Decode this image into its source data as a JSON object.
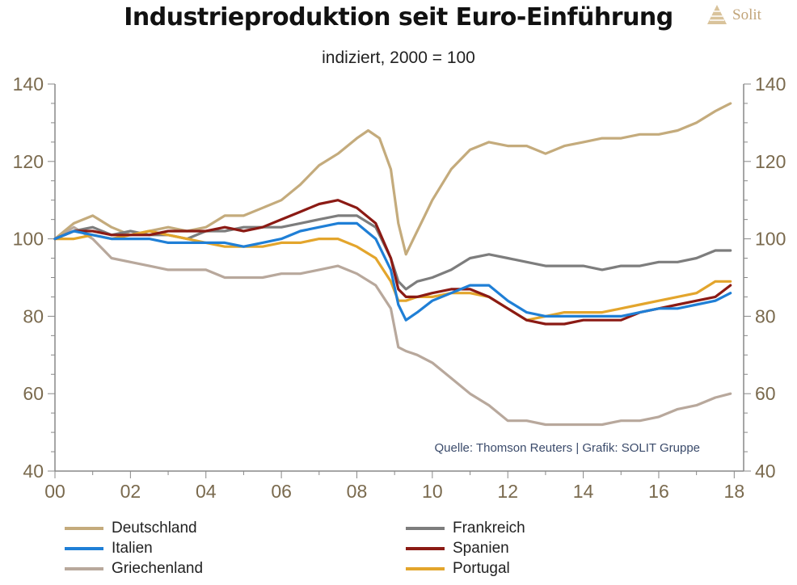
{
  "header": {
    "title": "Industrieproduktion seit Euro-Einführung",
    "subtitle": "indiziert, 2000 = 100",
    "logo_text": "Solit"
  },
  "source_note": "Quelle: Thomson Reuters | Grafik: SOLIT Gruppe",
  "chart_data": {
    "type": "line",
    "title": "Industrieproduktion seit Euro-Einführung",
    "subtitle": "indiziert, 2000 = 100",
    "x_tick_labels": [
      "00",
      "02",
      "04",
      "06",
      "08",
      "10",
      "12",
      "14",
      "16",
      "18"
    ],
    "y_tick_labels": [
      "40",
      "60",
      "80",
      "100",
      "120",
      "140"
    ],
    "xlim": [
      2000,
      2018.25
    ],
    "ylim": [
      40,
      140
    ],
    "y_axes": "left and right (mirrored)",
    "grid": false,
    "legend_position": "bottom",
    "series": [
      {
        "name": "Deutschland",
        "color": "#c4ab7c",
        "points": [
          [
            2000,
            100
          ],
          [
            2000.5,
            104
          ],
          [
            2001,
            106
          ],
          [
            2001.5,
            103
          ],
          [
            2002,
            101
          ],
          [
            2002.5,
            102
          ],
          [
            2003,
            103
          ],
          [
            2003.5,
            102
          ],
          [
            2004,
            103
          ],
          [
            2004.5,
            106
          ],
          [
            2005,
            106
          ],
          [
            2005.5,
            108
          ],
          [
            2006,
            110
          ],
          [
            2006.5,
            114
          ],
          [
            2007,
            119
          ],
          [
            2007.5,
            122
          ],
          [
            2008,
            126
          ],
          [
            2008.3,
            128
          ],
          [
            2008.6,
            126
          ],
          [
            2008.9,
            118
          ],
          [
            2009.1,
            104
          ],
          [
            2009.3,
            96
          ],
          [
            2009.5,
            100
          ],
          [
            2009.8,
            106
          ],
          [
            2010,
            110
          ],
          [
            2010.5,
            118
          ],
          [
            2011,
            123
          ],
          [
            2011.5,
            125
          ],
          [
            2012,
            124
          ],
          [
            2012.5,
            124
          ],
          [
            2013,
            122
          ],
          [
            2013.5,
            124
          ],
          [
            2014,
            125
          ],
          [
            2014.5,
            126
          ],
          [
            2015,
            126
          ],
          [
            2015.5,
            127
          ],
          [
            2016,
            127
          ],
          [
            2016.5,
            128
          ],
          [
            2017,
            130
          ],
          [
            2017.5,
            133
          ],
          [
            2017.9,
            135
          ]
        ]
      },
      {
        "name": "Frankreich",
        "color": "#7d7d7d",
        "points": [
          [
            2000,
            100
          ],
          [
            2000.5,
            102
          ],
          [
            2001,
            103
          ],
          [
            2001.5,
            101
          ],
          [
            2002,
            102
          ],
          [
            2002.5,
            101
          ],
          [
            2003,
            101
          ],
          [
            2003.5,
            100
          ],
          [
            2004,
            102
          ],
          [
            2004.5,
            102
          ],
          [
            2005,
            103
          ],
          [
            2005.5,
            103
          ],
          [
            2006,
            103
          ],
          [
            2006.5,
            104
          ],
          [
            2007,
            105
          ],
          [
            2007.5,
            106
          ],
          [
            2008,
            106
          ],
          [
            2008.5,
            103
          ],
          [
            2008.9,
            95
          ],
          [
            2009.1,
            89
          ],
          [
            2009.3,
            87
          ],
          [
            2009.6,
            89
          ],
          [
            2010,
            90
          ],
          [
            2010.5,
            92
          ],
          [
            2011,
            95
          ],
          [
            2011.5,
            96
          ],
          [
            2012,
            95
          ],
          [
            2012.5,
            94
          ],
          [
            2013,
            93
          ],
          [
            2013.5,
            93
          ],
          [
            2014,
            93
          ],
          [
            2014.5,
            92
          ],
          [
            2015,
            93
          ],
          [
            2015.5,
            93
          ],
          [
            2016,
            94
          ],
          [
            2016.5,
            94
          ],
          [
            2017,
            95
          ],
          [
            2017.5,
            97
          ],
          [
            2017.9,
            97
          ]
        ]
      },
      {
        "name": "Italien",
        "color": "#1f7fd6",
        "points": [
          [
            2000,
            100
          ],
          [
            2000.5,
            102
          ],
          [
            2001,
            101
          ],
          [
            2001.5,
            100
          ],
          [
            2002,
            100
          ],
          [
            2002.5,
            100
          ],
          [
            2003,
            99
          ],
          [
            2003.5,
            99
          ],
          [
            2004,
            99
          ],
          [
            2004.5,
            99
          ],
          [
            2005,
            98
          ],
          [
            2005.5,
            99
          ],
          [
            2006,
            100
          ],
          [
            2006.5,
            102
          ],
          [
            2007,
            103
          ],
          [
            2007.5,
            104
          ],
          [
            2008,
            104
          ],
          [
            2008.5,
            100
          ],
          [
            2008.9,
            92
          ],
          [
            2009.1,
            83
          ],
          [
            2009.3,
            79
          ],
          [
            2009.6,
            81
          ],
          [
            2010,
            84
          ],
          [
            2010.5,
            86
          ],
          [
            2011,
            88
          ],
          [
            2011.5,
            88
          ],
          [
            2012,
            84
          ],
          [
            2012.5,
            81
          ],
          [
            2013,
            80
          ],
          [
            2013.5,
            80
          ],
          [
            2014,
            80
          ],
          [
            2014.5,
            80
          ],
          [
            2015,
            80
          ],
          [
            2015.5,
            81
          ],
          [
            2016,
            82
          ],
          [
            2016.5,
            82
          ],
          [
            2017,
            83
          ],
          [
            2017.5,
            84
          ],
          [
            2017.9,
            86
          ]
        ]
      },
      {
        "name": "Spanien",
        "color": "#8b1a14",
        "points": [
          [
            2000,
            100
          ],
          [
            2000.5,
            102
          ],
          [
            2001,
            102
          ],
          [
            2001.5,
            101
          ],
          [
            2002,
            101
          ],
          [
            2002.5,
            101
          ],
          [
            2003,
            102
          ],
          [
            2003.5,
            102
          ],
          [
            2004,
            102
          ],
          [
            2004.5,
            103
          ],
          [
            2005,
            102
          ],
          [
            2005.5,
            103
          ],
          [
            2006,
            105
          ],
          [
            2006.5,
            107
          ],
          [
            2007,
            109
          ],
          [
            2007.5,
            110
          ],
          [
            2008,
            108
          ],
          [
            2008.5,
            104
          ],
          [
            2008.9,
            95
          ],
          [
            2009.1,
            87
          ],
          [
            2009.3,
            85
          ],
          [
            2009.6,
            85
          ],
          [
            2010,
            86
          ],
          [
            2010.5,
            87
          ],
          [
            2011,
            87
          ],
          [
            2011.5,
            85
          ],
          [
            2012,
            82
          ],
          [
            2012.5,
            79
          ],
          [
            2013,
            78
          ],
          [
            2013.5,
            78
          ],
          [
            2014,
            79
          ],
          [
            2014.5,
            79
          ],
          [
            2015,
            79
          ],
          [
            2015.5,
            81
          ],
          [
            2016,
            82
          ],
          [
            2016.5,
            83
          ],
          [
            2017,
            84
          ],
          [
            2017.5,
            85
          ],
          [
            2017.9,
            88
          ]
        ]
      },
      {
        "name": "Griechenland",
        "color": "#b8a89c",
        "points": [
          [
            2000,
            100
          ],
          [
            2000.5,
            103
          ],
          [
            2001,
            100
          ],
          [
            2001.5,
            95
          ],
          [
            2002,
            94
          ],
          [
            2002.5,
            93
          ],
          [
            2003,
            92
          ],
          [
            2003.5,
            92
          ],
          [
            2004,
            92
          ],
          [
            2004.5,
            90
          ],
          [
            2005,
            90
          ],
          [
            2005.5,
            90
          ],
          [
            2006,
            91
          ],
          [
            2006.5,
            91
          ],
          [
            2007,
            92
          ],
          [
            2007.5,
            93
          ],
          [
            2008,
            91
          ],
          [
            2008.5,
            88
          ],
          [
            2008.9,
            82
          ],
          [
            2009.1,
            72
          ],
          [
            2009.3,
            71
          ],
          [
            2009.6,
            70
          ],
          [
            2010,
            68
          ],
          [
            2010.5,
            64
          ],
          [
            2011,
            60
          ],
          [
            2011.5,
            57
          ],
          [
            2012,
            53
          ],
          [
            2012.5,
            53
          ],
          [
            2013,
            52
          ],
          [
            2013.5,
            52
          ],
          [
            2014,
            52
          ],
          [
            2014.5,
            52
          ],
          [
            2015,
            53
          ],
          [
            2015.5,
            53
          ],
          [
            2016,
            54
          ],
          [
            2016.5,
            56
          ],
          [
            2017,
            57
          ],
          [
            2017.5,
            59
          ],
          [
            2017.9,
            60
          ]
        ]
      },
      {
        "name": "Portugal",
        "color": "#e3a52c",
        "points": [
          [
            2000,
            100
          ],
          [
            2000.5,
            100
          ],
          [
            2001,
            101
          ],
          [
            2001.5,
            100
          ],
          [
            2002,
            101
          ],
          [
            2002.5,
            102
          ],
          [
            2003,
            101
          ],
          [
            2003.5,
            100
          ],
          [
            2004,
            99
          ],
          [
            2004.5,
            98
          ],
          [
            2005,
            98
          ],
          [
            2005.5,
            98
          ],
          [
            2006,
            99
          ],
          [
            2006.5,
            99
          ],
          [
            2007,
            100
          ],
          [
            2007.5,
            100
          ],
          [
            2008,
            98
          ],
          [
            2008.5,
            95
          ],
          [
            2008.9,
            89
          ],
          [
            2009.1,
            84
          ],
          [
            2009.3,
            84
          ],
          [
            2009.6,
            85
          ],
          [
            2010,
            85
          ],
          [
            2010.5,
            86
          ],
          [
            2011,
            86
          ],
          [
            2011.5,
            85
          ],
          [
            2012,
            82
          ],
          [
            2012.5,
            79
          ],
          [
            2013,
            80
          ],
          [
            2013.5,
            81
          ],
          [
            2014,
            81
          ],
          [
            2014.5,
            81
          ],
          [
            2015,
            82
          ],
          [
            2015.5,
            83
          ],
          [
            2016,
            84
          ],
          [
            2016.5,
            85
          ],
          [
            2017,
            86
          ],
          [
            2017.5,
            89
          ],
          [
            2017.9,
            89
          ]
        ]
      }
    ]
  },
  "legend": [
    {
      "label": "Deutschland",
      "color": "#c4ab7c"
    },
    {
      "label": "Frankreich",
      "color": "#7d7d7d"
    },
    {
      "label": "Italien",
      "color": "#1f7fd6"
    },
    {
      "label": "Spanien",
      "color": "#8b1a14"
    },
    {
      "label": "Griechenland",
      "color": "#b8a89c"
    },
    {
      "label": "Portugal",
      "color": "#e3a52c"
    }
  ]
}
